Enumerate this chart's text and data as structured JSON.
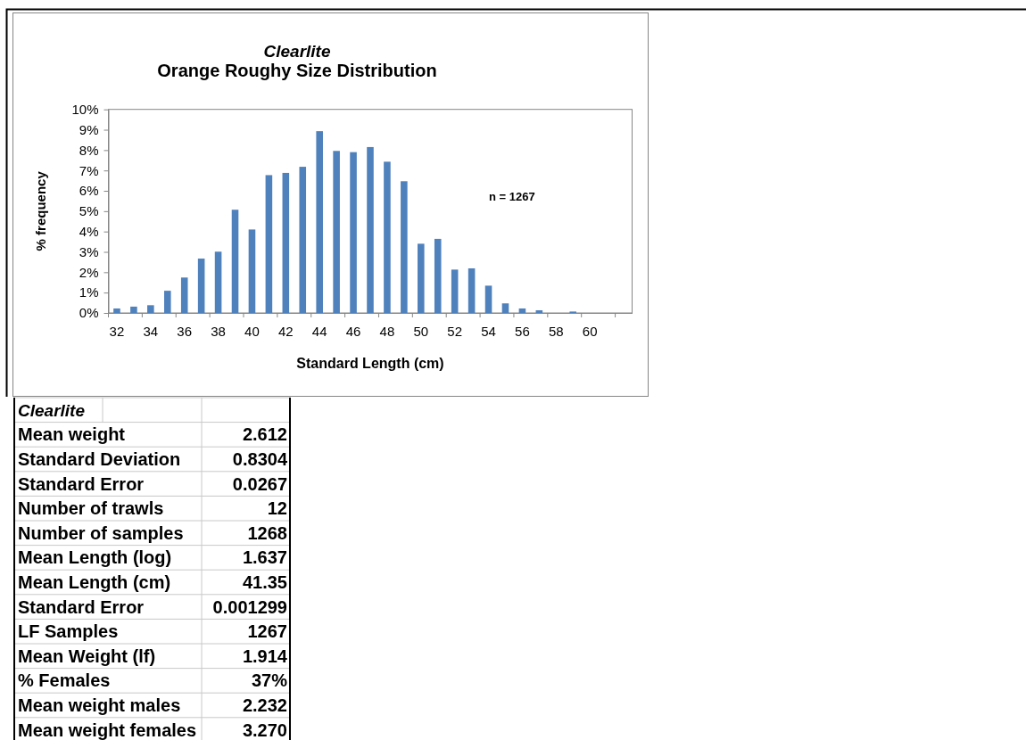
{
  "chart_data": [
    {
      "type": "bar",
      "title": "Clearlite",
      "subtitle": "Orange Roughy Size Distribution",
      "xlabel": "Standard Length (cm)",
      "ylabel": "% frequency",
      "categories": [
        "32",
        null,
        "34",
        null,
        "36",
        null,
        "38",
        null,
        "40",
        null,
        "42",
        null,
        "44",
        null,
        "46",
        null,
        "48",
        null,
        "50",
        null,
        "52",
        null,
        "54",
        null,
        "56",
        null,
        "58",
        null,
        "60",
        null,
        null
      ],
      "values": [
        0.22,
        0.31,
        0.38,
        1.09,
        1.74,
        2.67,
        3.01,
        5.07,
        4.1,
        6.77,
        6.88,
        7.18,
        8.93,
        7.96,
        7.9,
        8.15,
        7.43,
        6.47,
        3.4,
        3.64,
        2.13,
        2.19,
        1.34,
        0.47,
        0.22,
        0.13,
        0,
        0.07,
        0,
        0,
        0
      ],
      "color": "#4f81bd",
      "ylim": [
        0,
        10
      ],
      "yticks": [
        {
          "value": 0,
          "label": "0%"
        },
        {
          "value": 1,
          "label": "1%"
        },
        {
          "value": 2,
          "label": "2%"
        },
        {
          "value": 3,
          "label": "3%"
        },
        {
          "value": 4,
          "label": "4%"
        },
        {
          "value": 5,
          "label": "5%"
        },
        {
          "value": 6,
          "label": "6%"
        },
        {
          "value": 7,
          "label": "7%"
        },
        {
          "value": 8,
          "label": "8%"
        },
        {
          "value": 9,
          "label": "9%"
        },
        {
          "value": 10,
          "label": "10%"
        }
      ],
      "annotations": [
        "n = 1267"
      ]
    },
    {
      "type": "other",
      "title": "Clearlite",
      "annotations": [
        "Mean weight",
        "2.612",
        "Standard Deviation",
        "0.8304",
        "Standard Error",
        "0.0267",
        "Number of trawls",
        "12",
        "Number of samples",
        "1268",
        "Mean Length (log)",
        "1.637",
        "Mean Length (cm)",
        "41.35",
        "Standard Error",
        "0.001299",
        "LF Samples",
        "1267",
        "Mean Weight (lf)",
        "1.914",
        "% Females",
        "37%",
        "Mean weight males",
        "2.232",
        "Mean weight females",
        "3.270"
      ]
    }
  ]
}
